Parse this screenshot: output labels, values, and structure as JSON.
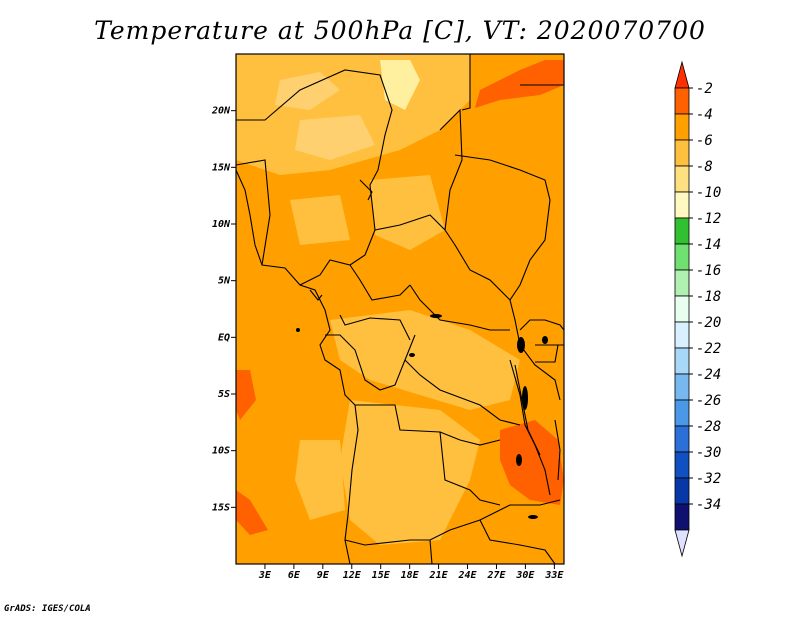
{
  "title": "Temperature at 500hPa [C], VT: 2020070700",
  "footer": "GrADS: IGES/COLA",
  "map": {
    "lon_range": [
      0,
      34
    ],
    "lat_range": [
      -20,
      25
    ],
    "lat_ticks": [
      {
        "value": 20,
        "label": "20N"
      },
      {
        "value": 15,
        "label": "15N"
      },
      {
        "value": 10,
        "label": "10N"
      },
      {
        "value": 5,
        "label": "5N"
      },
      {
        "value": 0,
        "label": "EQ"
      },
      {
        "value": -5,
        "label": "5S"
      },
      {
        "value": -10,
        "label": "10S"
      },
      {
        "value": -15,
        "label": "15S"
      }
    ],
    "lon_ticks": [
      {
        "value": 3,
        "label": "3E"
      },
      {
        "value": 6,
        "label": "6E"
      },
      {
        "value": 9,
        "label": "9E"
      },
      {
        "value": 12,
        "label": "12E"
      },
      {
        "value": 15,
        "label": "15E"
      },
      {
        "value": 18,
        "label": "18E"
      },
      {
        "value": 21,
        "label": "21E"
      },
      {
        "value": 24,
        "label": "24E"
      },
      {
        "value": 27,
        "label": "27E"
      },
      {
        "value": 30,
        "label": "30E"
      },
      {
        "value": 33,
        "label": "33E"
      }
    ],
    "fill_colors": {
      "base": "#ffa000",
      "warm": "#ffc040",
      "warmer": "#ffd070",
      "hot": "#ff6000",
      "pale": "#fff0a0"
    }
  },
  "legend": {
    "labels": [
      "-2",
      "-4",
      "-6",
      "-8",
      "-10",
      "-12",
      "-14",
      "-16",
      "-18",
      "-20",
      "-22",
      "-24",
      "-26",
      "-28",
      "-30",
      "-32",
      "-34"
    ],
    "colors": [
      "#ff3000",
      "#ff6000",
      "#ffa000",
      "#ffc040",
      "#ffe080",
      "#fff8c0",
      "#30c030",
      "#70e070",
      "#b0f0b0",
      "#e8fff0",
      "#d8f0ff",
      "#a8d8f8",
      "#78b8f0",
      "#4a98e8",
      "#2a70d8",
      "#1050c0",
      "#0838a8",
      "#101070",
      "#e0e0ff"
    ]
  }
}
